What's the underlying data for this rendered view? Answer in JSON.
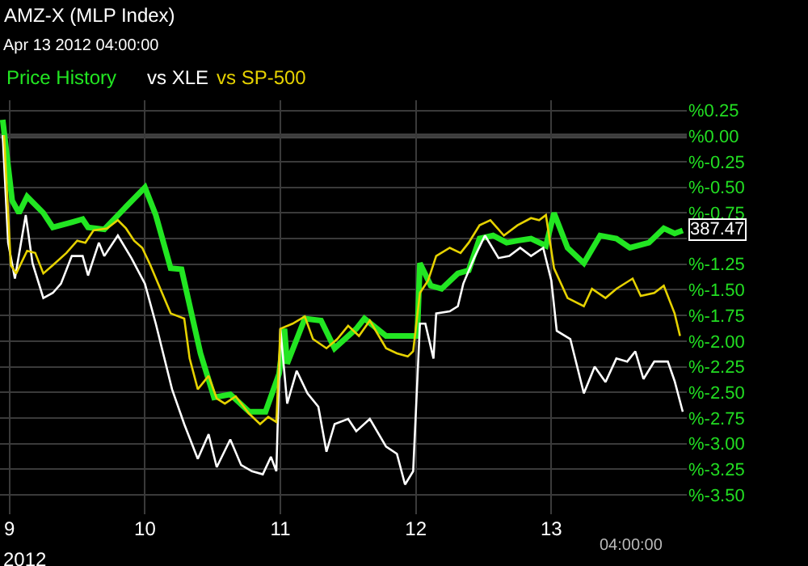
{
  "chart_data": {
    "type": "line",
    "title": "AMZ-X (MLP Index)",
    "subtitle": "Apr 13 2012 04:00:00",
    "legend": "top left",
    "grid": true,
    "xlim": [
      8.93,
      14.0
    ],
    "xticks": [
      9,
      10,
      11,
      12,
      13
    ],
    "ylim": [
      -3.69,
      0.35
    ],
    "yticks": [
      {
        "value": 0.25,
        "label": "%0.25"
      },
      {
        "value": 0,
        "label": "%0.00"
      },
      {
        "value": -0.25,
        "label": "%-0.25"
      },
      {
        "value": -0.5,
        "label": "%-0.50"
      },
      {
        "value": -0.75,
        "label": "%-0.75"
      },
      {
        "value": -1,
        "label": null
      },
      {
        "value": -1.25,
        "label": "%-1.25"
      },
      {
        "value": -1.5,
        "label": "%-1.50"
      },
      {
        "value": -1.75,
        "label": "%-1.75"
      },
      {
        "value": -2,
        "label": "%-2.00"
      },
      {
        "value": -2.25,
        "label": "%-2.25"
      },
      {
        "value": -2.5,
        "label": "%-2.50"
      },
      {
        "value": -2.75,
        "label": "%-2.75"
      },
      {
        "value": -3,
        "label": "%-3.00"
      },
      {
        "value": -3.25,
        "label": "%-3.25"
      },
      {
        "value": -3.5,
        "label": "%-3.50"
      }
    ],
    "ref_lines": [
      {
        "axis": "y",
        "value": 0,
        "label": null,
        "color": "#444444"
      }
    ],
    "annotations": [
      "2012",
      "04:00:00",
      {
        "text": "387.47",
        "x": 13.97,
        "y": -0.92
      }
    ],
    "series": [
      {
        "name": "Price History",
        "color": "#22e622",
        "x": [
          8.95,
          9.02,
          9.07,
          9.13,
          9.25,
          9.32,
          9.46,
          9.54,
          9.58,
          9.7,
          9.86,
          10.0,
          10.08,
          10.19,
          10.27,
          10.41,
          10.51,
          10.63,
          10.77,
          10.89,
          10.99,
          11.03,
          11.05,
          11.18,
          11.3,
          11.4,
          11.56,
          11.62,
          11.78,
          12.01,
          12.03,
          12.11,
          12.19,
          12.31,
          12.39,
          12.47,
          12.57,
          12.67,
          12.75,
          12.85,
          12.96,
          13.02,
          13.12,
          13.24,
          13.36,
          13.48,
          13.58,
          13.72,
          13.83,
          13.91,
          13.97
        ],
        "values": [
          0.16,
          -0.63,
          -0.75,
          -0.59,
          -0.75,
          -0.89,
          -0.84,
          -0.81,
          -0.89,
          -0.91,
          -0.69,
          -0.5,
          -0.77,
          -1.29,
          -1.3,
          -2.12,
          -2.55,
          -2.52,
          -2.69,
          -2.69,
          -2.32,
          -1.88,
          -2.22,
          -1.78,
          -1.8,
          -2.07,
          -1.88,
          -1.78,
          -1.95,
          -1.95,
          -1.24,
          -1.46,
          -1.49,
          -1.34,
          -1.31,
          -1.0,
          -0.97,
          -1.04,
          -1.02,
          -1.0,
          -1.07,
          -0.75,
          -1.09,
          -1.24,
          -0.97,
          -1.0,
          -1.09,
          -1.04,
          -0.9,
          -0.95,
          -0.92
        ]
      },
      {
        "name": "vs XLE",
        "color": "#ffffff",
        "x": [
          8.95,
          8.99,
          9.04,
          9.12,
          9.17,
          9.25,
          9.32,
          9.38,
          9.46,
          9.54,
          9.58,
          9.66,
          9.7,
          9.8,
          9.9,
          10.0,
          10.08,
          10.2,
          10.29,
          10.39,
          10.47,
          10.53,
          10.63,
          10.71,
          10.79,
          10.87,
          10.93,
          10.97,
          11.0,
          11.05,
          11.12,
          11.2,
          11.28,
          11.34,
          11.4,
          11.5,
          11.56,
          11.66,
          11.78,
          11.86,
          11.92,
          11.98,
          12.03,
          12.07,
          12.13,
          12.15,
          12.25,
          12.31,
          12.35,
          12.43,
          12.51,
          12.61,
          12.69,
          12.77,
          12.85,
          12.94,
          13.0,
          13.04,
          13.14,
          13.24,
          13.32,
          13.4,
          13.48,
          13.56,
          13.62,
          13.68,
          13.76,
          13.86,
          13.91,
          13.97
        ],
        "values": [
          0.01,
          -1.04,
          -1.39,
          -0.77,
          -1.24,
          -1.58,
          -1.53,
          -1.44,
          -1.17,
          -1.17,
          -1.36,
          -1.04,
          -1.17,
          -0.97,
          -1.19,
          -1.44,
          -1.83,
          -2.47,
          -2.81,
          -3.15,
          -2.91,
          -3.23,
          -2.96,
          -3.21,
          -3.27,
          -3.3,
          -3.13,
          -3.27,
          -1.88,
          -2.61,
          -2.29,
          -2.51,
          -2.64,
          -3.08,
          -2.81,
          -2.76,
          -2.88,
          -2.76,
          -3.03,
          -3.1,
          -3.4,
          -3.27,
          -1.83,
          -1.83,
          -2.17,
          -1.73,
          -1.71,
          -1.66,
          -1.44,
          -1.19,
          -0.97,
          -1.19,
          -1.17,
          -1.09,
          -1.17,
          -1.09,
          -1.41,
          -1.9,
          -1.98,
          -2.51,
          -2.25,
          -2.4,
          -2.17,
          -2.2,
          -2.1,
          -2.37,
          -2.2,
          -2.2,
          -2.39,
          -2.69
        ]
      },
      {
        "name": "vs SP-500",
        "color": "#e6d200",
        "x": [
          8.96,
          9.01,
          9.05,
          9.13,
          9.19,
          9.25,
          9.32,
          9.42,
          9.5,
          9.56,
          9.62,
          9.72,
          9.8,
          9.86,
          9.92,
          9.98,
          10.04,
          10.12,
          10.19,
          10.29,
          10.33,
          10.39,
          10.47,
          10.53,
          10.59,
          10.67,
          10.77,
          10.85,
          10.91,
          10.97,
          11.0,
          11.09,
          11.18,
          11.24,
          11.34,
          11.42,
          11.5,
          11.58,
          11.66,
          11.78,
          11.86,
          11.94,
          11.98,
          12.03,
          12.09,
          12.15,
          12.25,
          12.33,
          12.39,
          12.47,
          12.55,
          12.65,
          12.75,
          12.85,
          12.91,
          12.96,
          13.02,
          13.12,
          13.24,
          13.3,
          13.4,
          13.48,
          13.6,
          13.66,
          13.76,
          13.83,
          13.91,
          13.95
        ],
        "values": [
          0.01,
          -1.26,
          -1.34,
          -1.12,
          -1.14,
          -1.34,
          -1.26,
          -1.14,
          -1.02,
          -1.04,
          -0.92,
          -0.9,
          -0.82,
          -0.9,
          -1.02,
          -1.09,
          -1.26,
          -1.51,
          -1.73,
          -1.78,
          -2.17,
          -2.47,
          -2.34,
          -2.56,
          -2.61,
          -2.54,
          -2.71,
          -2.81,
          -2.74,
          -2.79,
          -1.88,
          -1.83,
          -1.76,
          -1.98,
          -2.07,
          -1.98,
          -1.85,
          -1.95,
          -1.8,
          -2.07,
          -2.12,
          -2.15,
          -2.1,
          -1.53,
          -1.41,
          -1.17,
          -1.09,
          -1.14,
          -1.04,
          -0.87,
          -0.82,
          -0.97,
          -0.87,
          -0.8,
          -0.82,
          -0.77,
          -1.29,
          -1.58,
          -1.66,
          -1.49,
          -1.58,
          -1.49,
          -1.39,
          -1.56,
          -1.53,
          -1.46,
          -1.73,
          -1.95
        ]
      }
    ]
  }
}
